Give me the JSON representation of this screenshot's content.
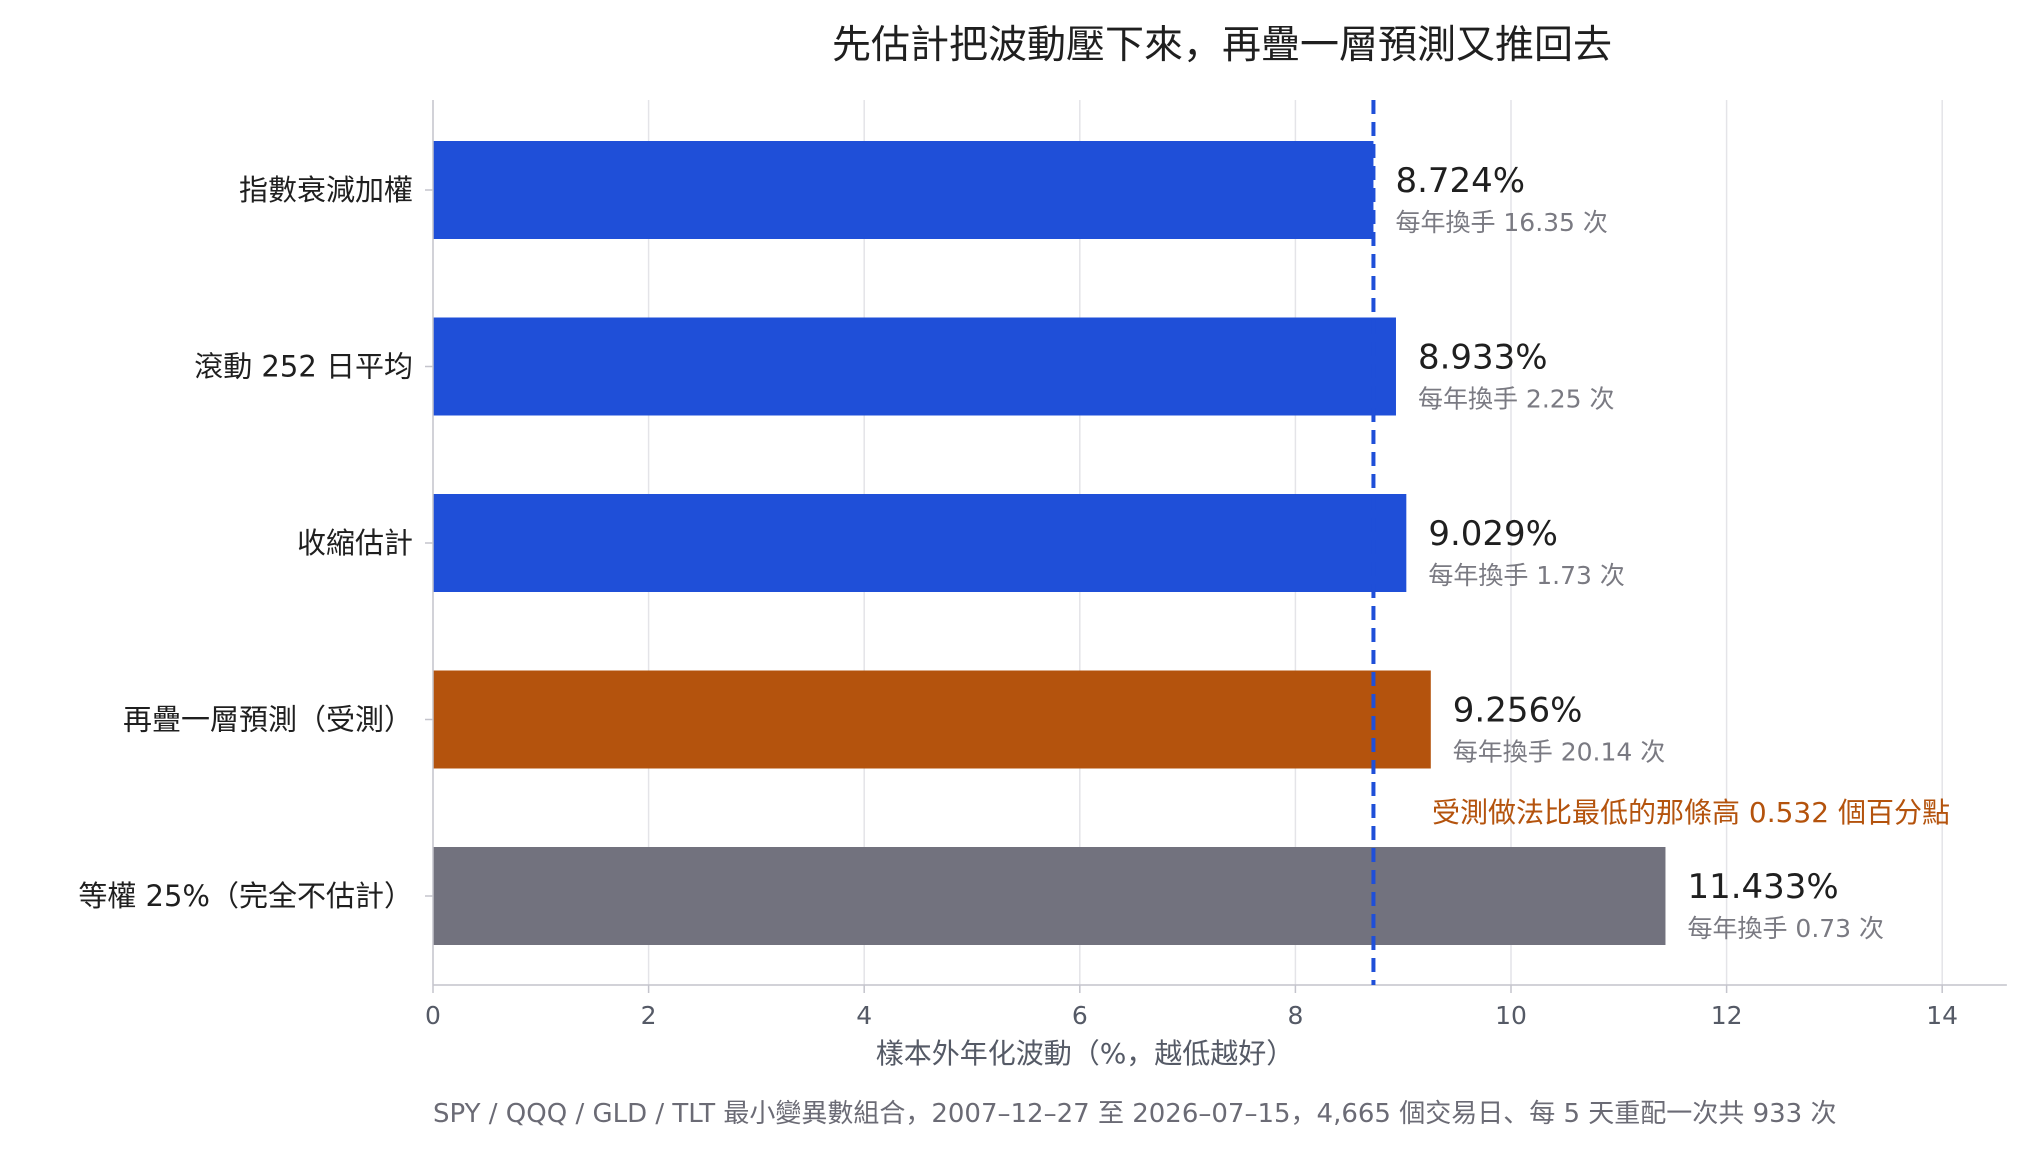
{
  "chart_data": {
    "type": "bar",
    "orientation": "horizontal",
    "title": "先估計把波動壓下來，再疊一層預測又推回去",
    "xlabel": "樣本外年化波動（%，越低越好）",
    "xlim": [
      0,
      14.6
    ],
    "xticks": [
      "0",
      "2",
      "4",
      "6",
      "8",
      "10",
      "12",
      "14"
    ],
    "grid": "vertical",
    "categories": [
      "指數衰減加權",
      "滾動 252 日平均",
      "收縮估計",
      "再疊一層預測（受測）",
      "等權 25%（完全不估計）"
    ],
    "values": [
      8.724,
      8.933,
      9.029,
      9.256,
      11.433
    ],
    "value_labels": [
      "8.724%",
      "8.933%",
      "9.029%",
      "9.256%",
      "11.433%"
    ],
    "turnover_labels": [
      "每年換手 16.35 次",
      "每年換手 2.25 次",
      "每年換手 1.73 次",
      "每年換手 20.14 次",
      "每年換手 0.73 次"
    ],
    "bar_colors": [
      "#1f4fd8",
      "#1f4fd8",
      "#1f4fd8",
      "#b4530d",
      "#72727e"
    ],
    "reference_line": {
      "value": 8.724,
      "style": "dashed",
      "color": "#1f4fd8"
    },
    "annotation": {
      "text": "受測做法比最低的那條高 0.532 個百分點",
      "color": "#b4530d"
    },
    "footer": "SPY / QQQ / GLD / TLT 最小變異數組合，2007–12–27 至 2026–07–15，4,665 個交易日、每 5 天重配一次共 933 次"
  }
}
